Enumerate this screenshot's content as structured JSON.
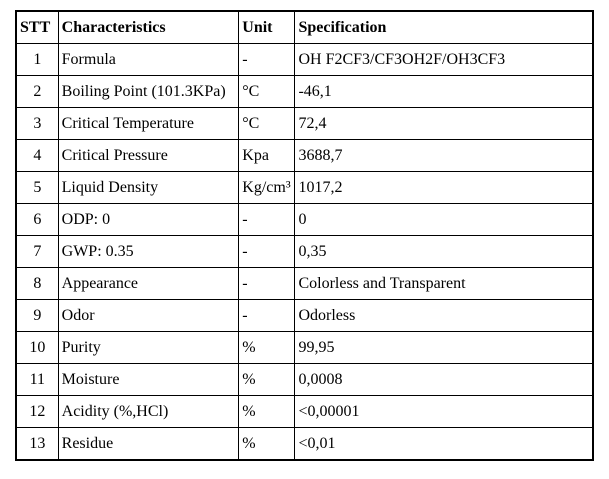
{
  "table": {
    "columns": [
      {
        "key": "stt",
        "label": "STT"
      },
      {
        "key": "characteristic",
        "label": "Characteristics"
      },
      {
        "key": "unit",
        "label": "Unit"
      },
      {
        "key": "specification",
        "label": "Specification"
      }
    ],
    "rows": [
      {
        "stt": "1",
        "characteristic": "Formula",
        "unit": "-",
        "specification": "OH F2CF3/CF3OH2F/OH3CF3"
      },
      {
        "stt": "2",
        "characteristic": "Boiling Point (101.3KPa)",
        "unit": "°C",
        "specification": "-46,1"
      },
      {
        "stt": "3",
        "characteristic": "Critical Temperature",
        "unit": "°C",
        "specification": "72,4"
      },
      {
        "stt": "4",
        "characteristic": "Critical Pressure",
        "unit": "Kpa",
        "specification": "3688,7"
      },
      {
        "stt": "5",
        "characteristic": "Liquid Density",
        "unit": "Kg/cm³",
        "specification": "1017,2"
      },
      {
        "stt": "6",
        "characteristic": "ODP: 0",
        "unit": "-",
        "specification": "0"
      },
      {
        "stt": "7",
        "characteristic": "GWP: 0.35",
        "unit": "-",
        "specification": "0,35"
      },
      {
        "stt": "8",
        "characteristic": "Appearance",
        "unit": "-",
        "specification": "Colorless and Transparent"
      },
      {
        "stt": "9",
        "characteristic": "Odor",
        "unit": "-",
        "specification": "Odorless"
      },
      {
        "stt": "10",
        "characteristic": "Purity",
        "unit": "%",
        "specification": "99,95"
      },
      {
        "stt": "11",
        "characteristic": "Moisture",
        "unit": "%",
        "specification": "0,0008"
      },
      {
        "stt": "12",
        "characteristic": "Acidity (%,HCl)",
        "unit": "%",
        "specification": "<0,00001"
      },
      {
        "stt": "13",
        "characteristic": "Residue",
        "unit": "%",
        "specification": "<0,01"
      }
    ],
    "colors": {
      "border": "#000000",
      "text": "#000000",
      "background": "#ffffff"
    }
  }
}
